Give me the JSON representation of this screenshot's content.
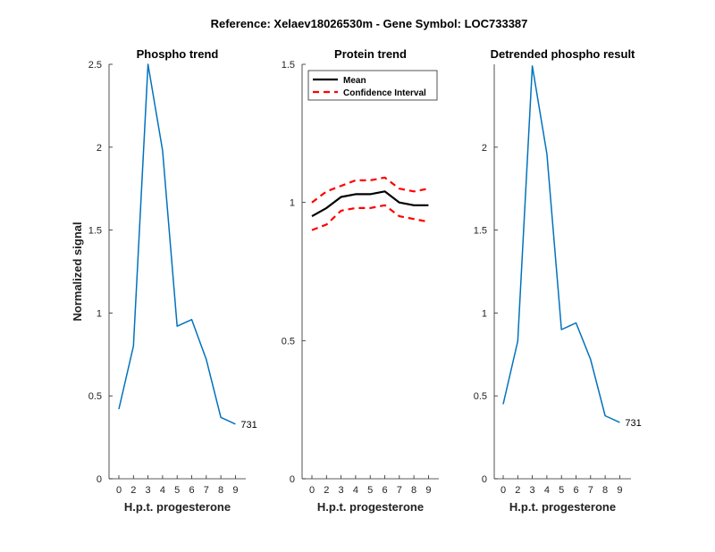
{
  "figure": {
    "title": "Reference:  Xelaev18026530m - Gene Symbol:  LOC733387"
  },
  "chart_data": [
    {
      "type": "line",
      "title": "Phospho trend",
      "xlabel": "H.p.t. progesterone",
      "ylabel": "Normalized signal",
      "x_ticks": [
        "0",
        "2",
        "3",
        "4",
        "5",
        "6",
        "7",
        "8",
        "9"
      ],
      "y_ticks": [
        "0",
        "0.5",
        "1",
        "1.5",
        "2",
        "2.5"
      ],
      "ylim": [
        0,
        2.5
      ],
      "series": [
        {
          "color": "#0072BD",
          "style": "solid",
          "values": [
            0.42,
            0.8,
            2.5,
            1.98,
            0.92,
            0.96,
            0.72,
            0.37,
            0.33
          ]
        }
      ],
      "annotation": {
        "text": "731",
        "at_index": 8
      }
    },
    {
      "type": "line",
      "title": "Protein trend",
      "xlabel": "H.p.t. progesterone",
      "ylabel": "",
      "x_ticks": [
        "0",
        "2",
        "3",
        "4",
        "5",
        "6",
        "7",
        "8",
        "9"
      ],
      "y_ticks": [
        "0",
        "0.5",
        "1",
        "1.5"
      ],
      "ylim": [
        0,
        1.5
      ],
      "legend": {
        "placement": "top-left"
      },
      "series": [
        {
          "name": "Mean",
          "color": "#000000",
          "style": "solid",
          "values": [
            0.95,
            0.98,
            1.02,
            1.03,
            1.03,
            1.04,
            1.0,
            0.99,
            0.99
          ]
        },
        {
          "name": "Confidence Interval",
          "color": "#FF0000",
          "style": "dashed",
          "values": [
            1.0,
            1.04,
            1.06,
            1.08,
            1.08,
            1.09,
            1.05,
            1.04,
            1.05
          ]
        },
        {
          "color": "#FF0000",
          "style": "dashed",
          "values": [
            0.9,
            0.92,
            0.97,
            0.98,
            0.98,
            0.99,
            0.95,
            0.94,
            0.93
          ]
        }
      ]
    },
    {
      "type": "line",
      "title": "Detrended phospho result",
      "xlabel": "H.p.t. progesterone",
      "ylabel": "",
      "x_ticks": [
        "0",
        "2",
        "3",
        "4",
        "5",
        "6",
        "7",
        "8",
        "9"
      ],
      "y_ticks": [
        "0",
        "0.5",
        "1",
        "1.5",
        "2"
      ],
      "ylim": [
        0,
        2.5
      ],
      "series": [
        {
          "color": "#0072BD",
          "style": "solid",
          "values": [
            0.45,
            0.83,
            2.49,
            1.96,
            0.9,
            0.94,
            0.72,
            0.38,
            0.34
          ]
        }
      ],
      "annotation": {
        "text": "731",
        "at_index": 8
      }
    }
  ]
}
